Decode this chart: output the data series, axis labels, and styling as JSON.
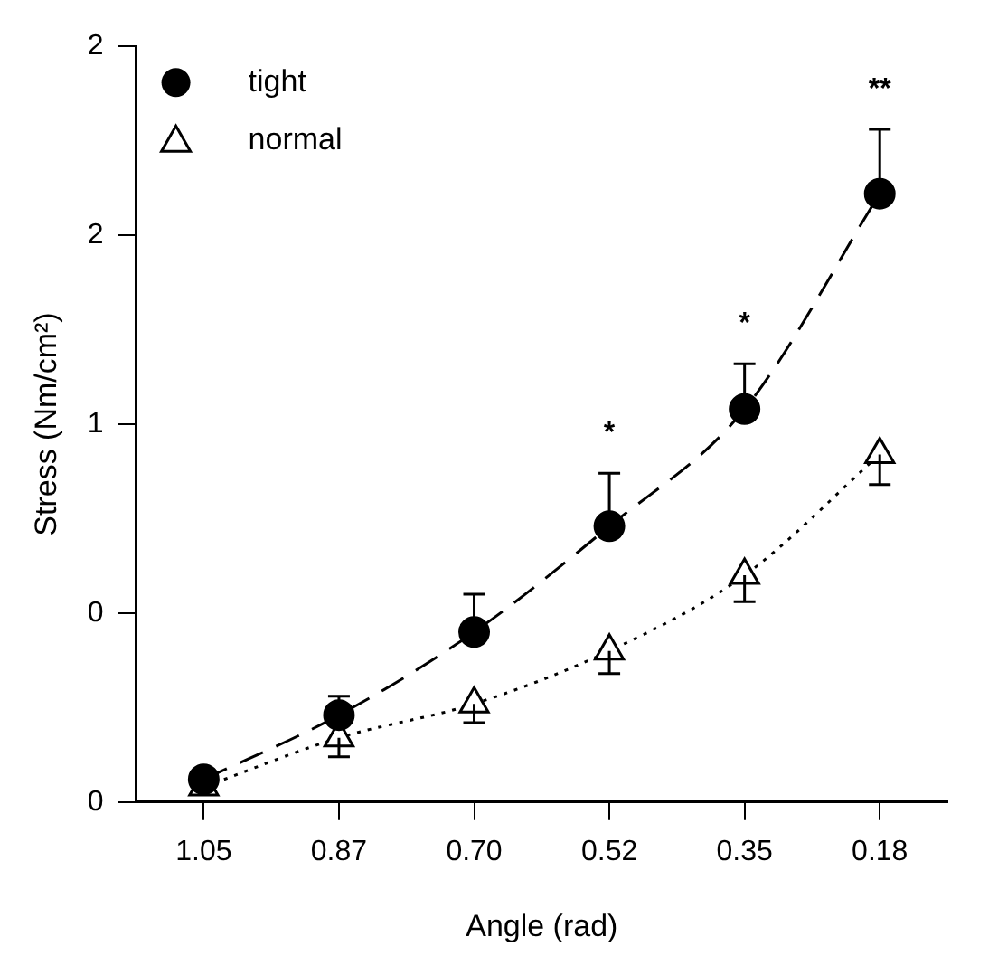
{
  "chart_data": {
    "type": "line",
    "xlabel": "Angle (rad)",
    "ylabel": "Stress (Nm/cm²)",
    "categories": [
      "1.05",
      "0.87",
      "0.70",
      "0.52",
      "0.35",
      "0.18"
    ],
    "series": [
      {
        "name": "tight",
        "color": "#000000",
        "marker": "circle",
        "line_style": "dashed",
        "values": [
          0.06,
          0.23,
          0.45,
          0.73,
          1.04,
          1.61
        ],
        "errors": [
          null,
          [
            0.23,
            0.28
          ],
          [
            0.45,
            0.55
          ],
          [
            0.73,
            0.87
          ],
          [
            1.04,
            1.16
          ],
          [
            1.61,
            1.78
          ]
        ]
      },
      {
        "name": "normal",
        "color": "#000000",
        "marker": "triangle",
        "line_style": "dotted",
        "values": [
          0.04,
          0.17,
          0.26,
          0.4,
          0.6,
          0.92
        ],
        "errors": [
          null,
          [
            0.12,
            0.17
          ],
          [
            0.21,
            0.26
          ],
          [
            0.34,
            0.4
          ],
          [
            0.53,
            0.6
          ],
          [
            0.84,
            0.92
          ]
        ]
      }
    ],
    "ylim": [
      0,
      2
    ],
    "yticks": [
      0,
      {
        "value": 0.5,
        "label": "0"
      },
      1,
      {
        "value": 1.5,
        "label": "2"
      },
      2
    ],
    "annotations": [
      {
        "text": "*",
        "x": "0.52",
        "y": 0.87
      },
      {
        "text": "*",
        "x": "0.35",
        "y": 1.16
      },
      {
        "text": "**",
        "x": "0.18",
        "y": 1.78
      }
    ],
    "legend": "top left",
    "grid": false
  }
}
